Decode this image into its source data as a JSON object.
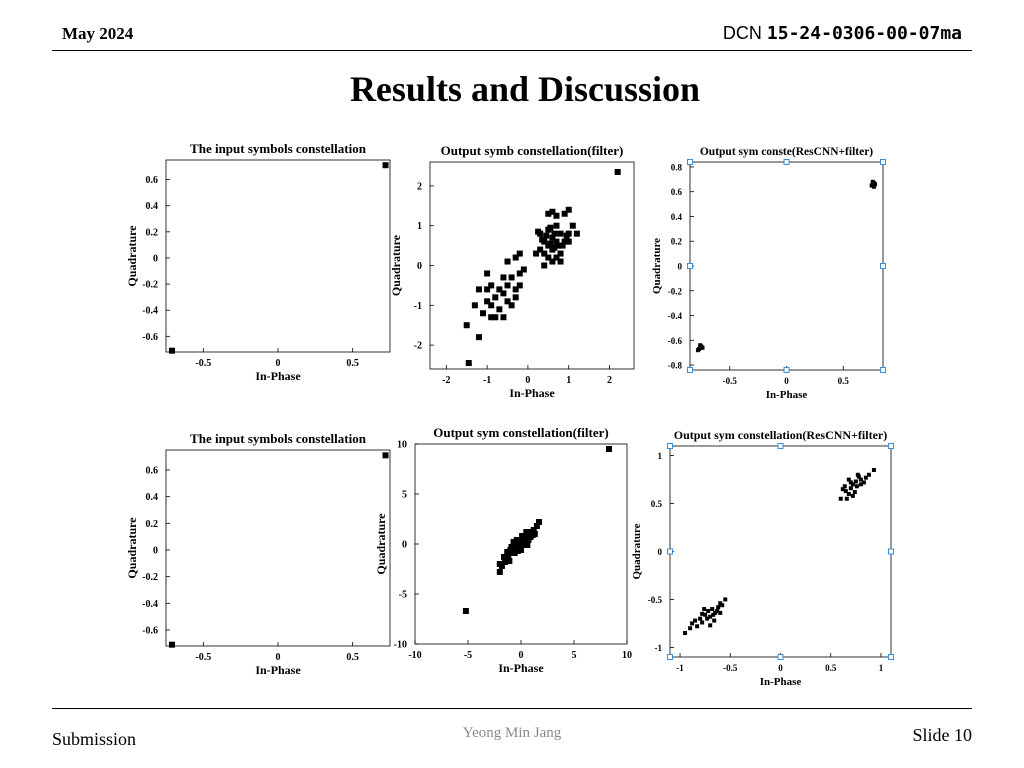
{
  "header": {
    "date": "May 2024",
    "doc_prefix": "DCN",
    "doc_number": "15-24-0306-00-07ma"
  },
  "slide": {
    "title": "Results and Discussion"
  },
  "footer": {
    "left": "Submission",
    "center": "Yeong Min Jang",
    "right": "Slide 10"
  },
  "chart_data": [
    {
      "type": "scatter",
      "title": "The input symbols constellation",
      "xlabel": "In-Phase",
      "ylabel": "Quadrature",
      "xlim": [
        -0.75,
        0.75
      ],
      "ylim": [
        -0.72,
        0.75
      ],
      "xticks": [
        -0.5,
        0,
        0.5
      ],
      "xtick_labels": [
        "-0.5",
        "0",
        "0.5"
      ],
      "yticks": [
        0.6,
        0.4,
        0.2,
        0,
        -0.2,
        -0.4,
        -0.6
      ],
      "ytick_labels": [
        "0.6",
        "0.4",
        "0.2",
        "0",
        "-0.2",
        "-0.4",
        "-0.6"
      ],
      "points": [
        [
          0.72,
          0.71
        ],
        [
          -0.71,
          -0.71
        ]
      ]
    },
    {
      "type": "scatter",
      "title": "Output symb constellation(filter)",
      "xlabel": "In-Phase",
      "ylabel": "Quadrature",
      "xlim": [
        -2.4,
        2.6
      ],
      "ylim": [
        -2.6,
        2.6
      ],
      "xticks": [
        -2,
        -1,
        0,
        1,
        2
      ],
      "xtick_labels": [
        "-2",
        "-1",
        "0",
        "1",
        "2"
      ],
      "yticks": [
        2,
        1,
        0,
        -1,
        -2
      ],
      "ytick_labels": [
        "2",
        "1",
        "0",
        "-1",
        "-2"
      ],
      "points": [
        [
          2.2,
          2.35
        ],
        [
          -1.5,
          -1.5
        ],
        [
          -1.2,
          -1.8
        ],
        [
          -1.45,
          -2.45
        ],
        [
          -1.1,
          -1.2
        ],
        [
          -1.0,
          -0.9
        ],
        [
          -0.9,
          -1.0
        ],
        [
          -0.8,
          -0.8
        ],
        [
          -0.7,
          -0.6
        ],
        [
          -0.6,
          -0.7
        ],
        [
          -0.5,
          -0.5
        ],
        [
          -0.4,
          -0.3
        ],
        [
          -0.3,
          -0.6
        ],
        [
          -0.2,
          -0.2
        ],
        [
          -0.1,
          -0.1
        ],
        [
          -0.9,
          -0.5
        ],
        [
          -0.7,
          -1.1
        ],
        [
          -0.5,
          -0.9
        ],
        [
          -0.3,
          -0.8
        ],
        [
          -0.6,
          -0.3
        ],
        [
          -0.4,
          -1.0
        ],
        [
          -1.0,
          -0.6
        ],
        [
          -0.8,
          -1.3
        ],
        [
          -0.2,
          -0.5
        ],
        [
          -0.5,
          0.1
        ],
        [
          -0.3,
          0.2
        ],
        [
          -0.2,
          0.3
        ],
        [
          -0.6,
          -1.3
        ],
        [
          -0.9,
          -1.3
        ],
        [
          -1.3,
          -1.0
        ],
        [
          -1.2,
          -0.6
        ],
        [
          -1.0,
          -0.2
        ],
        [
          0.3,
          0.8
        ],
        [
          0.4,
          0.6
        ],
        [
          0.5,
          0.5
        ],
        [
          0.6,
          0.7
        ],
        [
          0.7,
          0.6
        ],
        [
          0.8,
          0.8
        ],
        [
          0.5,
          0.9
        ],
        [
          0.6,
          0.4
        ],
        [
          0.7,
          1.0
        ],
        [
          0.9,
          0.6
        ],
        [
          0.4,
          0.3
        ],
        [
          0.5,
          0.2
        ],
        [
          0.6,
          0.1
        ],
        [
          0.8,
          0.3
        ],
        [
          0.3,
          0.4
        ],
        [
          0.2,
          0.3
        ],
        [
          1.0,
          0.8
        ],
        [
          1.1,
          1.0
        ],
        [
          1.0,
          1.4
        ],
        [
          0.9,
          1.3
        ],
        [
          0.7,
          1.25
        ],
        [
          0.6,
          1.35
        ],
        [
          0.5,
          1.3
        ],
        [
          0.8,
          0.1
        ],
        [
          0.4,
          0.0
        ],
        [
          1.2,
          0.8
        ],
        [
          1.0,
          0.6
        ],
        [
          0.7,
          0.2
        ],
        [
          0.35,
          0.65
        ],
        [
          0.55,
          0.55
        ],
        [
          0.65,
          0.45
        ],
        [
          0.45,
          0.75
        ],
        [
          0.75,
          0.5
        ],
        [
          0.85,
          0.5
        ],
        [
          0.25,
          0.85
        ],
        [
          0.95,
          0.75
        ],
        [
          0.55,
          0.95
        ],
        [
          0.65,
          0.8
        ]
      ]
    },
    {
      "type": "scatter",
      "title": "Output sym conste(ResCNN+filter)",
      "xlabel": "In-Phase",
      "ylabel": "Quadrature",
      "xlim": [
        -0.85,
        0.85
      ],
      "ylim": [
        -0.84,
        0.84
      ],
      "xticks": [
        -0.5,
        0,
        0.5
      ],
      "xtick_labels": [
        "-0.5",
        "0",
        "0.5"
      ],
      "yticks": [
        0.8,
        0.6,
        0.4,
        0.2,
        0,
        -0.2,
        -0.4,
        -0.6,
        -0.8
      ],
      "ytick_labels": [
        "0.8",
        "0.6",
        "0.4",
        "0.2",
        "0",
        "-0.2",
        "-0.4",
        "-0.6",
        "-0.8"
      ],
      "points": [
        [
          0.76,
          0.66
        ],
        [
          0.77,
          0.67
        ],
        [
          0.75,
          0.65
        ],
        [
          0.78,
          0.66
        ],
        [
          0.76,
          0.68
        ],
        [
          0.77,
          0.64
        ],
        [
          -0.76,
          -0.66
        ],
        [
          -0.77,
          -0.67
        ],
        [
          -0.75,
          -0.65
        ],
        [
          -0.78,
          -0.68
        ],
        [
          -0.76,
          -0.64
        ],
        [
          -0.74,
          -0.66
        ]
      ]
    },
    {
      "type": "scatter",
      "title": "The input symbols constellation",
      "xlabel": "In-Phase",
      "ylabel": "Quadrature",
      "xlim": [
        -0.75,
        0.75
      ],
      "ylim": [
        -0.72,
        0.75
      ],
      "xticks": [
        -0.5,
        0,
        0.5
      ],
      "xtick_labels": [
        "-0.5",
        "0",
        "0.5"
      ],
      "yticks": [
        0.6,
        0.4,
        0.2,
        0,
        -0.2,
        -0.4,
        -0.6
      ],
      "ytick_labels": [
        "0.6",
        "0.4",
        "0.2",
        "0",
        "-0.2",
        "-0.4",
        "-0.6"
      ],
      "points": [
        [
          0.72,
          0.71
        ],
        [
          -0.71,
          -0.71
        ]
      ]
    },
    {
      "type": "scatter",
      "title": "Output sym constellation(filter)",
      "xlabel": "In-Phase",
      "ylabel": "Quadrature",
      "xlim": [
        -10,
        10
      ],
      "ylim": [
        -10,
        10
      ],
      "xticks": [
        -10,
        -5,
        0,
        5,
        10
      ],
      "xtick_labels": [
        "-10",
        "-5",
        "0",
        "5",
        "10"
      ],
      "yticks": [
        10,
        5,
        0,
        -5,
        -10
      ],
      "ytick_labels": [
        "10",
        "5",
        "0",
        "-5",
        "-10"
      ],
      "points": [
        [
          8.3,
          9.5
        ],
        [
          -5.2,
          -6.7
        ],
        [
          -2.0,
          -2.0
        ],
        [
          -2.0,
          -2.8
        ],
        [
          -1.8,
          -2.2
        ],
        [
          -1.5,
          -1.8
        ],
        [
          -1.2,
          -1.3
        ],
        [
          -1.0,
          -0.6
        ],
        [
          -0.8,
          -0.9
        ],
        [
          -0.6,
          -0.4
        ],
        [
          -0.5,
          -0.2
        ],
        [
          -0.3,
          0.0
        ],
        [
          -0.2,
          0.1
        ],
        [
          0.0,
          0.2
        ],
        [
          0.2,
          0.4
        ],
        [
          0.3,
          0.6
        ],
        [
          0.5,
          0.7
        ],
        [
          0.6,
          0.9
        ],
        [
          0.8,
          1.1
        ],
        [
          1.0,
          1.2
        ],
        [
          1.2,
          1.4
        ],
        [
          1.5,
          1.8
        ],
        [
          1.7,
          2.2
        ],
        [
          -1.3,
          -0.8
        ],
        [
          -0.9,
          -0.3
        ],
        [
          -0.6,
          -0.9
        ],
        [
          -0.4,
          0.4
        ],
        [
          -0.1,
          -0.3
        ],
        [
          0.1,
          0.8
        ],
        [
          0.4,
          0.2
        ],
        [
          0.7,
          0.4
        ],
        [
          0.9,
          0.7
        ],
        [
          1.1,
          0.9
        ],
        [
          -1.6,
          -1.3
        ],
        [
          -0.3,
          -0.7
        ],
        [
          0.2,
          -0.1
        ],
        [
          0.5,
          1.2
        ],
        [
          1.3,
          1.0
        ],
        [
          -0.7,
          0.2
        ],
        [
          0.0,
          -0.6
        ],
        [
          0.6,
          -0.1
        ],
        [
          -1.1,
          -1.7
        ]
      ]
    },
    {
      "type": "scatter",
      "title": "Output sym constellation(ResCNN+filter)",
      "xlabel": "In-Phase",
      "ylabel": "Quadrature",
      "xlim": [
        -1.1,
        1.1
      ],
      "ylim": [
        -1.1,
        1.1
      ],
      "xticks": [
        -1,
        -0.5,
        0,
        0.5,
        1
      ],
      "xtick_labels": [
        "-1",
        "-0.5",
        "0",
        "0.5",
        "1"
      ],
      "yticks": [
        1,
        0.5,
        0,
        -0.5,
        -1
      ],
      "ytick_labels": [
        "1",
        "0.5",
        "0",
        "-0.5",
        "-1"
      ],
      "points": [
        [
          0.93,
          0.85
        ],
        [
          0.88,
          0.8
        ],
        [
          0.85,
          0.77
        ],
        [
          0.8,
          0.75
        ],
        [
          0.78,
          0.78
        ],
        [
          0.75,
          0.73
        ],
        [
          0.72,
          0.7
        ],
        [
          0.7,
          0.66
        ],
        [
          0.68,
          0.6
        ],
        [
          0.65,
          0.63
        ],
        [
          0.62,
          0.65
        ],
        [
          0.6,
          0.55
        ],
        [
          0.66,
          0.55
        ],
        [
          0.74,
          0.62
        ],
        [
          0.8,
          0.7
        ],
        [
          0.7,
          0.72
        ],
        [
          0.76,
          0.68
        ],
        [
          0.83,
          0.72
        ],
        [
          0.64,
          0.68
        ],
        [
          0.72,
          0.58
        ],
        [
          0.68,
          0.75
        ],
        [
          0.77,
          0.8
        ],
        [
          -0.95,
          -0.85
        ],
        [
          -0.88,
          -0.75
        ],
        [
          -0.83,
          -0.78
        ],
        [
          -0.8,
          -0.7
        ],
        [
          -0.78,
          -0.74
        ],
        [
          -0.75,
          -0.66
        ],
        [
          -0.72,
          -0.62
        ],
        [
          -0.7,
          -0.68
        ],
        [
          -0.68,
          -0.6
        ],
        [
          -0.65,
          -0.64
        ],
        [
          -0.62,
          -0.58
        ],
        [
          -0.6,
          -0.54
        ],
        [
          -0.58,
          -0.56
        ],
        [
          -0.55,
          -0.5
        ],
        [
          -0.78,
          -0.65
        ],
        [
          -0.73,
          -0.7
        ],
        [
          -0.67,
          -0.66
        ],
        [
          -0.85,
          -0.72
        ],
        [
          -0.7,
          -0.77
        ],
        [
          -0.63,
          -0.62
        ],
        [
          -0.76,
          -0.6
        ],
        [
          -0.66,
          -0.72
        ],
        [
          -0.9,
          -0.8
        ],
        [
          -0.6,
          -0.64
        ]
      ]
    }
  ]
}
